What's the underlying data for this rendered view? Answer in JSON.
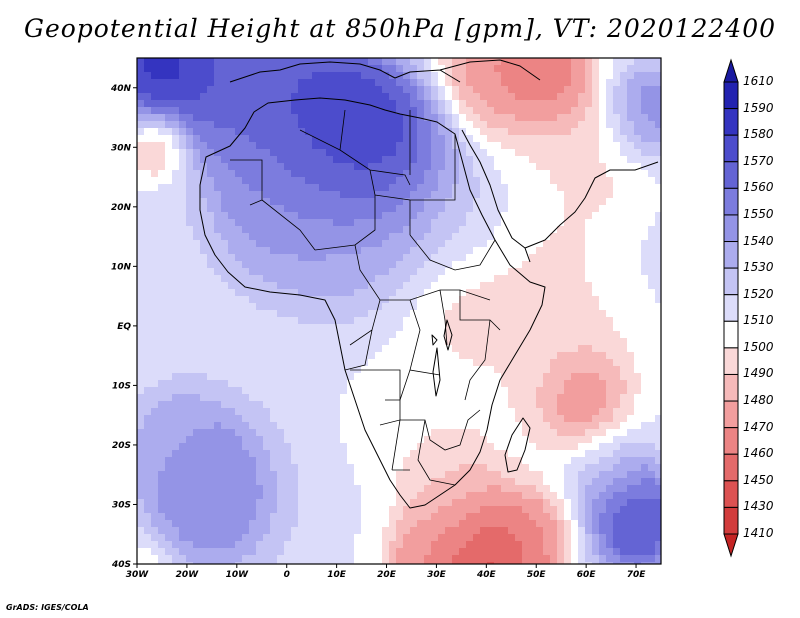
{
  "title": "Geopotential Height at 850hPa [gpm], VT: 2020122400",
  "footer": "GrADS: IGES/COLA",
  "map": {
    "lon_range": [
      -30,
      75
    ],
    "lat_range": [
      -40,
      45
    ],
    "x_ticks": [
      "30W",
      "20W",
      "10W",
      "0",
      "10E",
      "20E",
      "30E",
      "40E",
      "50E",
      "60E",
      "70E"
    ],
    "y_ticks": [
      "40N",
      "30N",
      "20N",
      "10N",
      "EQ",
      "10S",
      "20S",
      "30S",
      "40S"
    ],
    "background_value": 1512,
    "features": [
      {
        "lon": -25,
        "lat": 44,
        "value": 1600,
        "r": 9
      },
      {
        "lon": -12,
        "lat": 42,
        "value": 1575,
        "r": 11
      },
      {
        "lon": 5,
        "lat": 34,
        "value": 1585,
        "r": 15
      },
      {
        "lon": 13,
        "lat": 30,
        "value": 1590,
        "r": 12
      },
      {
        "lon": 22,
        "lat": 29,
        "value": 1585,
        "r": 10
      },
      {
        "lon": -2,
        "lat": 22,
        "value": 1545,
        "r": 14
      },
      {
        "lon": 12,
        "lat": 16,
        "value": 1535,
        "r": 14
      },
      {
        "lon": 28,
        "lat": 20,
        "value": 1530,
        "r": 11
      },
      {
        "lon": 38,
        "lat": 20,
        "value": 1522,
        "r": 10
      },
      {
        "lon": 72,
        "lat": 36,
        "value": 1560,
        "r": 7
      },
      {
        "lon": -26,
        "lat": 30,
        "value": 1475,
        "r": 5
      },
      {
        "lon": 40,
        "lat": 42,
        "value": 1465,
        "r": 10
      },
      {
        "lon": 52,
        "lat": 42,
        "value": 1450,
        "r": 9
      },
      {
        "lon": 63,
        "lat": 28,
        "value": 1495,
        "r": 10
      },
      {
        "lon": 50,
        "lat": 25,
        "value": 1500,
        "r": 9
      },
      {
        "lon": 36,
        "lat": 5,
        "value": 1492,
        "r": 10
      },
      {
        "lon": 50,
        "lat": 10,
        "value": 1495,
        "r": 12
      },
      {
        "lon": 60,
        "lat": -14,
        "value": 1440,
        "r": 6
      },
      {
        "lon": 58,
        "lat": -10,
        "value": 1485,
        "r": 13
      },
      {
        "lon": 27,
        "lat": -15,
        "value": 1500,
        "r": 13
      },
      {
        "lon": 33,
        "lat": -28,
        "value": 1485,
        "r": 8
      },
      {
        "lon": 40,
        "lat": -40,
        "value": 1430,
        "r": 11
      },
      {
        "lon": 28,
        "lat": -40,
        "value": 1470,
        "r": 8
      },
      {
        "lon": 50,
        "lat": -36,
        "value": 1470,
        "r": 7
      },
      {
        "lon": -15,
        "lat": -28,
        "value": 1560,
        "r": 13
      },
      {
        "lon": -22,
        "lat": -20,
        "value": 1535,
        "r": 9
      },
      {
        "lon": -28,
        "lat": -40,
        "value": 1495,
        "r": 5
      },
      {
        "lon": 70,
        "lat": -33,
        "value": 1585,
        "r": 9
      },
      {
        "lon": 63,
        "lat": -22,
        "value": 1535,
        "r": 8
      }
    ]
  },
  "colorbar": {
    "levels": [
      1410,
      1430,
      1450,
      1460,
      1470,
      1480,
      1490,
      1500,
      1510,
      1520,
      1530,
      1540,
      1550,
      1560,
      1570,
      1580,
      1590,
      1610
    ],
    "colors": [
      "#c42424",
      "#d23c3c",
      "#dc5252",
      "#e46a6a",
      "#ec8484",
      "#f29e9e",
      "#f6baba",
      "#fad8d8",
      "#ffffff",
      "#dcdcfa",
      "#c4c4f4",
      "#acacee",
      "#9494e6",
      "#7c7cde",
      "#6464d4",
      "#4c4ccc",
      "#3434c0",
      "#2222b0",
      "#1a1aa0"
    ]
  }
}
